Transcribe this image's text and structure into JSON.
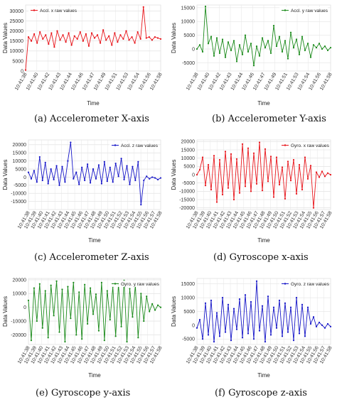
{
  "captions": {
    "a": "(a) Accelerometer X-axis",
    "b": "(b) Accelerometer Y-axis",
    "c": "(c) Accelerometer Z-axis",
    "d": "(d) Gyroscope x-axis",
    "e": "(e) Gyroscope y-axis",
    "f": "(f) Gyroscope z-axis"
  },
  "time_labels": [
    "10:41:38",
    "10:41:39",
    "10:41:40",
    "10:41:41",
    "10:41:42",
    "10:41:43",
    "10:41:44",
    "10:41:45",
    "10:41:46",
    "10:41:47",
    "10:41:48",
    "10:41:49",
    "10:41:50",
    "10:41:51",
    "10:41:52",
    "10:41:53",
    "10:41:54",
    "10:41:55",
    "10:41:56",
    "10:41:57",
    "10:41:58"
  ],
  "chart_data": [
    {
      "type": "line",
      "title": "",
      "xlabel": "Time",
      "ylabel": "Data Values",
      "ylim": [
        0,
        33000
      ],
      "yticks": [
        0,
        5000,
        10000,
        15000,
        20000,
        25000,
        30000
      ],
      "xtick_labels": [
        "10:41:38",
        "10:41:40",
        "10:41:42",
        "10:41:43",
        "10:41:44",
        "10:41:46",
        "10:41:47",
        "10:41:49",
        "10:41:51",
        "10:41:53",
        "10:41:54",
        "10:41:56",
        "10:41:58"
      ],
      "grid": true,
      "legend_position": "top-left",
      "series": [
        {
          "name": "Accl. x raw values",
          "color": "#e8141a",
          "values": [
            500,
            17000,
            15000,
            18500,
            14000,
            19500,
            16000,
            18000,
            13500,
            19000,
            12000,
            20000,
            15500,
            18000,
            14500,
            19000,
            13000,
            17500,
            16000,
            19500,
            15000,
            18500,
            12500,
            19000,
            16500,
            18000,
            14000,
            20500,
            15500,
            17500,
            13000,
            19000,
            14500,
            18000,
            16000,
            20000,
            15500,
            17000,
            14000,
            19500,
            16000,
            32000,
            16500,
            17000,
            15500,
            17000,
            16500,
            16000
          ]
        }
      ]
    },
    {
      "type": "line",
      "title": "",
      "xlabel": "Time",
      "ylabel": "Data Values",
      "ylim": [
        -8000,
        16000
      ],
      "yticks": [
        -5000,
        0,
        5000,
        10000,
        15000
      ],
      "xtick_labels": [
        "10:41:38",
        "10:41:40",
        "10:41:42",
        "10:41:43",
        "10:41:44",
        "10:41:46",
        "10:41:47",
        "10:41:49",
        "10:41:51",
        "10:41:53",
        "10:41:54",
        "10:41:56",
        "10:41:58"
      ],
      "grid": true,
      "legend_position": "top-right",
      "series": [
        {
          "name": "Accl. y raw values",
          "color": "#1a8a1a",
          "values": [
            0,
            1500,
            -1000,
            15500,
            2000,
            4500,
            -2500,
            4000,
            -1500,
            3500,
            -3000,
            2500,
            -500,
            3000,
            -4500,
            1500,
            -2000,
            5000,
            -1000,
            2000,
            -6000,
            1000,
            -2500,
            4000,
            500,
            3000,
            -1500,
            8500,
            1000,
            4500,
            -1000,
            3000,
            -3500,
            6000,
            500,
            3500,
            -2000,
            4500,
            -500,
            2000,
            -3000,
            1500,
            500,
            2000,
            0,
            1000,
            -500,
            500
          ]
        }
      ]
    },
    {
      "type": "line",
      "title": "",
      "xlabel": "Time",
      "ylabel": "Data Values",
      "ylim": [
        -20000,
        23000
      ],
      "yticks": [
        -15000,
        -10000,
        -5000,
        0,
        5000,
        10000,
        15000,
        20000
      ],
      "xtick_labels": [
        "10:41:38",
        "10:41:39",
        "10:41:40",
        "10:41:41",
        "10:41:42",
        "10:41:43",
        "10:41:44",
        "10:41:45",
        "10:41:46",
        "10:41:47",
        "10:41:48",
        "10:41:49",
        "10:41:50",
        "10:41:51",
        "10:41:52",
        "10:41:53",
        "10:41:54",
        "10:41:55",
        "10:41:56",
        "10:41:57",
        "10:41:58"
      ],
      "grid": true,
      "legend_position": "top-right",
      "series": [
        {
          "name": "Accl. z raw values",
          "color": "#1515c8",
          "values": [
            3000,
            -1000,
            4000,
            -3000,
            12500,
            -2000,
            9000,
            -4000,
            5000,
            -1500,
            7000,
            -5000,
            6500,
            -3000,
            10000,
            21500,
            -1000,
            3000,
            -4500,
            6000,
            -2000,
            8000,
            -3500,
            5000,
            -1000,
            7500,
            -4000,
            9500,
            -2500,
            6000,
            -3000,
            8500,
            500,
            11500,
            -1500,
            7000,
            -4500,
            6500,
            -2000,
            9500,
            -17000,
            -2000,
            500,
            -1000,
            0,
            -500,
            -1500,
            -500
          ]
        }
      ]
    },
    {
      "type": "line",
      "title": "",
      "xlabel": "Time",
      "ylabel": "Data Values",
      "ylim": [
        -21000,
        21000
      ],
      "yticks": [
        -20000,
        -15000,
        -10000,
        -5000,
        0,
        5000,
        10000,
        15000,
        20000
      ],
      "xtick_labels": [
        "10:41:38",
        "10:41:39",
        "10:41:40",
        "10:41:41",
        "10:41:42",
        "10:41:43",
        "10:41:44",
        "10:41:45",
        "10:41:46",
        "10:41:47",
        "10:41:48",
        "10:41:49",
        "10:41:50",
        "10:41:51",
        "10:41:52",
        "10:41:53",
        "10:41:54",
        "10:41:55",
        "10:41:56",
        "10:41:57",
        "10:41:58"
      ],
      "grid": true,
      "legend_position": "top-right",
      "series": [
        {
          "name": "Gyro. x raw values",
          "color": "#e8141a",
          "values": [
            0,
            3000,
            10500,
            -6500,
            6000,
            -9000,
            11500,
            -16500,
            9000,
            -12000,
            14000,
            -8000,
            12500,
            -15000,
            9500,
            -11000,
            18500,
            -7000,
            16000,
            -10000,
            13000,
            -5500,
            19500,
            -9500,
            15500,
            -4000,
            11000,
            -13500,
            10500,
            -6000,
            4500,
            -14500,
            8000,
            -3500,
            9000,
            -11500,
            6000,
            -9000,
            10500,
            -2500,
            5500,
            -20000,
            1500,
            -1500,
            2000,
            -1000,
            1000,
            0
          ]
        }
      ]
    },
    {
      "type": "line",
      "title": "",
      "xlabel": "Time",
      "ylabel": "Data Values",
      "ylim": [
        -27000,
        21000
      ],
      "yticks": [
        -20000,
        -10000,
        0,
        10000,
        20000
      ],
      "xtick_labels": [
        "10:41:38",
        "10:41:39",
        "10:41:40",
        "10:41:41",
        "10:41:42",
        "10:41:43",
        "10:41:44",
        "10:41:45",
        "10:41:46",
        "10:41:47",
        "10:41:48",
        "10:41:49",
        "10:41:50",
        "10:41:51",
        "10:41:52",
        "10:41:53",
        "10:41:54",
        "10:41:55",
        "10:41:56",
        "10:41:57",
        "10:41:58"
      ],
      "grid": true,
      "legend_position": "top-right",
      "series": [
        {
          "name": "Gyro. y raw values",
          "color": "#1a8a1a",
          "values": [
            5000,
            -24000,
            14000,
            -10000,
            17000,
            -15000,
            12000,
            -22000,
            16000,
            -6000,
            19000,
            -18000,
            13000,
            -25000,
            15000,
            -8000,
            18000,
            -20000,
            11000,
            -23000,
            16500,
            -12000,
            14000,
            -5000,
            9500,
            -17000,
            18000,
            -24000,
            12000,
            -9000,
            15000,
            -21000,
            17000,
            -14000,
            19500,
            -25000,
            13500,
            -7000,
            16000,
            -22000,
            10000,
            -10000,
            8000,
            -3000,
            2500,
            -2000,
            1500,
            0
          ]
        }
      ]
    },
    {
      "type": "line",
      "title": "",
      "xlabel": "Time",
      "ylabel": "Data Values",
      "ylim": [
        -7000,
        17000
      ],
      "yticks": [
        -5000,
        0,
        5000,
        10000,
        15000
      ],
      "xtick_labels": [
        "10:41:38",
        "10:41:39",
        "10:41:40",
        "10:41:41",
        "10:41:42",
        "10:41:43",
        "10:41:44",
        "10:41:45",
        "10:41:46",
        "10:41:47",
        "10:41:48",
        "10:41:49",
        "10:41:50",
        "10:41:51",
        "10:41:52",
        "10:41:53",
        "10:41:54",
        "10:41:55",
        "10:41:56",
        "10:41:57",
        "10:41:58"
      ],
      "grid": true,
      "legend_position": "top-right",
      "series": [
        {
          "name": "Gyro. z raw values",
          "color": "#1515c8",
          "values": [
            -1000,
            2000,
            -5000,
            8000,
            -3500,
            9000,
            -6000,
            4500,
            -4000,
            10000,
            -2500,
            7500,
            -5500,
            6000,
            -1500,
            9500,
            -4500,
            11000,
            -3000,
            8500,
            -5000,
            16000,
            -2000,
            7000,
            -6000,
            10500,
            -3500,
            6500,
            -1000,
            9000,
            -4000,
            8000,
            -2500,
            6500,
            -5500,
            10000,
            -3000,
            7500,
            -4000,
            6500,
            500,
            3000,
            -500,
            1000,
            0,
            -1000,
            500,
            -500
          ]
        }
      ]
    }
  ]
}
